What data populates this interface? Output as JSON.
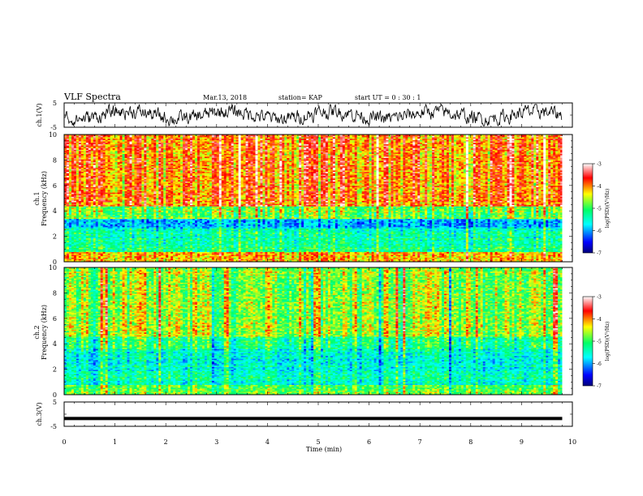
{
  "header": {
    "title": "VLF Spectra",
    "date": "Mar.13, 2018",
    "station": "station= KAP",
    "start_ut": "start  UT =   0  : 30 : 1"
  },
  "colors": {
    "colormap": [
      "#00007a",
      "#0000ff",
      "#00ffff",
      "#00ff66",
      "#ffff00",
      "#ff0000",
      "#ffffff"
    ],
    "trace": "#000000",
    "axis": "#000000"
  },
  "chart_data": [
    {
      "type": "line",
      "panel": "ch1-waveform",
      "ylabel": "ch.1(V)",
      "ylim": [
        -5,
        5
      ],
      "yticks": [
        "5",
        "-5"
      ],
      "xlim": [
        0,
        10
      ],
      "description_values": "noise waveform, amplitude roughly -4 to 4 V"
    },
    {
      "type": "heatmap",
      "panel": "ch1-spectrogram",
      "ylabel": "ch.1\nFrequency (kHz)",
      "ylim": [
        0,
        10
      ],
      "yticks": [
        "0",
        "2",
        "4",
        "6",
        "8",
        "10"
      ],
      "xlim": [
        0,
        10
      ],
      "colorbar": {
        "label": "log(PSD)(V²/Hz)",
        "range": [
          -7,
          -3
        ],
        "ticks": [
          "-3",
          "-4",
          "-5",
          "-6",
          "-7"
        ]
      },
      "bands": [
        {
          "f": [
            0,
            0.8
          ],
          "level": 0.7
        },
        {
          "f": [
            0.8,
            1.9
          ],
          "level": 0.45
        },
        {
          "f": [
            1.9,
            2.6
          ],
          "level": 0.4
        },
        {
          "f": [
            2.6,
            3.4
          ],
          "level": 0.28
        },
        {
          "f": [
            3.4,
            4.3
          ],
          "level": 0.55
        },
        {
          "f": [
            4.3,
            10
          ],
          "level": 0.76
        }
      ]
    },
    {
      "type": "heatmap",
      "panel": "ch2-spectrogram",
      "ylabel": "ch.2\nFrequency (kHz)",
      "ylim": [
        0,
        10
      ],
      "yticks": [
        "0",
        "2",
        "4",
        "6",
        "8",
        "10"
      ],
      "xlim": [
        0,
        10
      ],
      "colorbar": {
        "label": "log(PSD)(V²/Hz)",
        "range": [
          -7,
          -3
        ],
        "ticks": [
          "-3",
          "-4",
          "-5",
          "-6",
          "-7"
        ]
      },
      "bands": [
        {
          "f": [
            0,
            0.8
          ],
          "level": 0.55
        },
        {
          "f": [
            0.8,
            1.9
          ],
          "level": 0.4
        },
        {
          "f": [
            1.9,
            3.6
          ],
          "level": 0.38
        },
        {
          "f": [
            3.6,
            4.6
          ],
          "level": 0.45
        },
        {
          "f": [
            4.6,
            10
          ],
          "level": 0.6
        }
      ]
    },
    {
      "type": "line",
      "panel": "ch3-waveform",
      "ylabel": "ch.3(V)",
      "ylim": [
        -5,
        5
      ],
      "yticks": [
        "5",
        "-5"
      ],
      "xlim": [
        0,
        10
      ],
      "x": [
        0,
        9.8
      ],
      "y": [
        -1.8,
        -1.8
      ]
    }
  ],
  "x_axis": {
    "label": "Time  (min)",
    "ticks": [
      "0",
      "1",
      "2",
      "3",
      "4",
      "5",
      "6",
      "7",
      "8",
      "9",
      "10"
    ]
  }
}
